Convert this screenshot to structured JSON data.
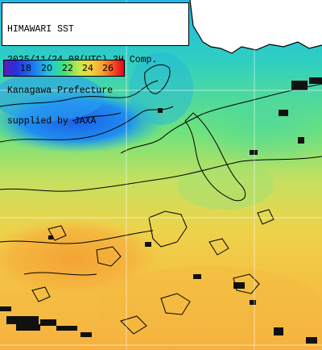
{
  "header": {
    "line1": "HIMAWARI SST",
    "line2": "2025/11/24 08(UTC) 3H Comp.",
    "line3": "Kanagawa Prefecture",
    "line4": "supplied by JAXA"
  },
  "legend": {
    "ticks": [
      "18",
      "20",
      "22",
      "24",
      "26"
    ],
    "colors": [
      "#5a1fb0",
      "#2a2ee0",
      "#1e7cf0",
      "#20c8e0",
      "#3ee07a",
      "#c8e84a",
      "#f5d040",
      "#f59a30",
      "#f04020",
      "#e8001a"
    ]
  },
  "colors": {
    "land": "#ffffff",
    "cloud_mask": "#111111",
    "contour": "#000000",
    "grid": "#ffffff"
  }
}
